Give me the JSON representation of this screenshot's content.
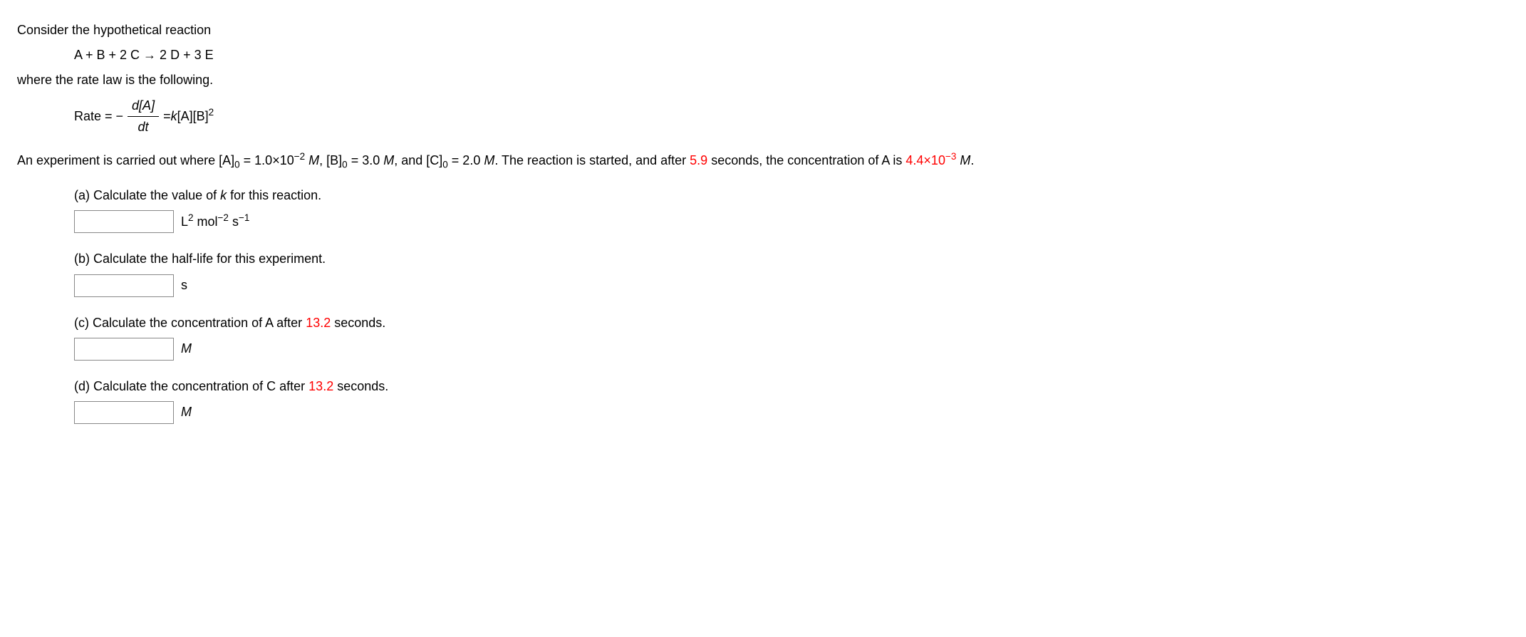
{
  "intro": {
    "line1": "Consider the hypothetical reaction",
    "reaction": "A + B + 2 C → 2 D + 3 E",
    "line2": "where the rate law is the following.",
    "rate_prefix": "Rate = −",
    "frac_num": "d[A]",
    "frac_den": "dt",
    "rate_rhs_prefix": " = ",
    "rate_k": "k",
    "rate_rhs_body": "[A][B]",
    "rate_exp": "2"
  },
  "experiment": {
    "pre_A0": "An experiment is carried out where [A]",
    "sub0_a": "0",
    "eq_A0": " = 1.0×10",
    "exp_A0": "−2",
    "post_A0": " ",
    "M_a": "M",
    "sep1": ", [B]",
    "sub0_b": "0",
    "eq_B0": " = 3.0 ",
    "M_b": "M",
    "sep2": ", and [C]",
    "sub0_c": "0",
    "eq_C0": " = 2.0 ",
    "M_c": "M",
    "post": ". The reaction is started, and after ",
    "time": "5.9",
    "post2": " seconds, the concentration of A is ",
    "A_final_coeff": "4.4",
    "A_final_times": "×10",
    "A_final_exp": "−3",
    "post3": " ",
    "M_d": "M",
    "period": "."
  },
  "qa": {
    "prompt_pre": "(a) Calculate the value of ",
    "k": "k",
    "prompt_post": " for this reaction.",
    "unit_L": "L",
    "unit_L_exp": "2",
    "unit_mol": " mol",
    "unit_mol_exp": "−2",
    "unit_s": " s",
    "unit_s_exp": "−1"
  },
  "qb": {
    "prompt": "(b) Calculate the half-life for this experiment.",
    "unit": "s"
  },
  "qc": {
    "prompt_pre": "(c) Calculate the concentration of A after ",
    "time": "13.2",
    "prompt_post": " seconds.",
    "unit": "M"
  },
  "qd": {
    "prompt_pre": "(d) Calculate the concentration of C after ",
    "time": "13.2",
    "prompt_post": " seconds.",
    "unit": "M"
  }
}
